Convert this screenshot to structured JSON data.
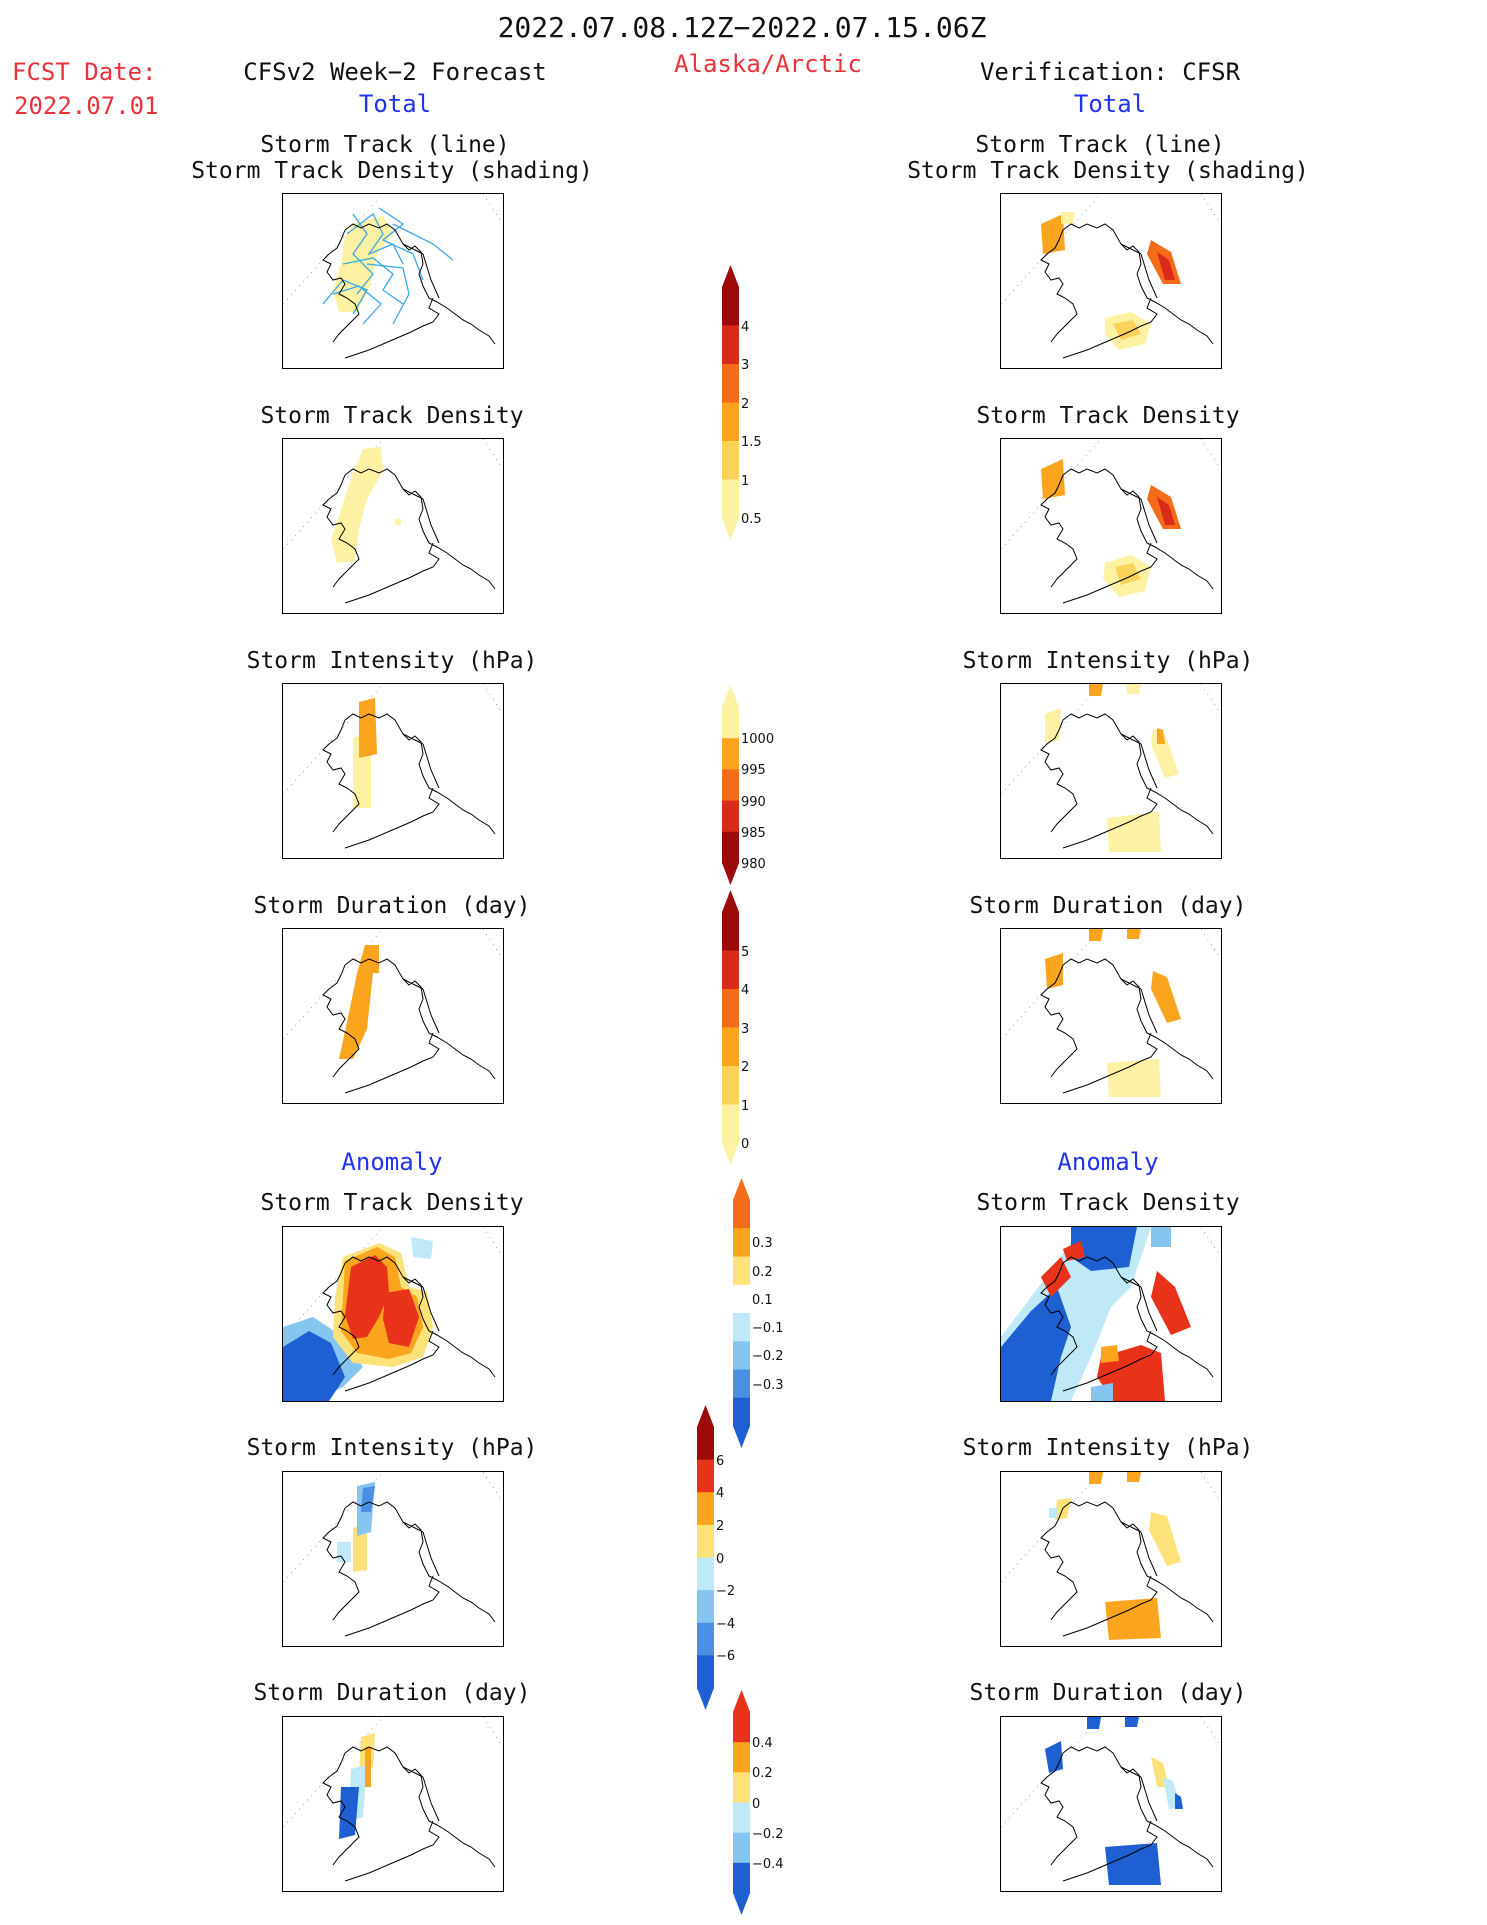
{
  "header": {
    "period": "2022.07.08.12Z−2022.07.15.06Z",
    "region": "Alaska/Arctic",
    "fcst_label": "FCST Date:",
    "fcst_date": "2022.07.01",
    "left_title": "CFSv2 Week−2 Forecast",
    "left_sub": "Total",
    "right_title": "Verification: CFSR",
    "right_sub": "Total"
  },
  "section_labels": {
    "anomaly_left": "Anomaly",
    "anomaly_right": "Anomaly"
  },
  "panels": {
    "track_line1": "Storm Track (line)",
    "track_line2": "Storm Track Density (shading)",
    "density": "Storm Track Density",
    "intensity": "Storm Intensity (hPa)",
    "duration": "Storm Duration (day)"
  },
  "colorbars": {
    "density_total": {
      "ticks": [
        "4",
        "3",
        "2",
        "1.5",
        "1",
        "0.5"
      ],
      "colors": [
        "#9c0a0a",
        "#d92a1a",
        "#f46b1a",
        "#fba41e",
        "#fcd25a",
        "#fdf1a4"
      ]
    },
    "intensity_total": {
      "ticks": [
        "1000",
        "995",
        "990",
        "985",
        "980"
      ],
      "colors": [
        "#fdf1a4",
        "#fba41e",
        "#f46b1a",
        "#d92a1a",
        "#9c0a0a"
      ]
    },
    "duration_total": {
      "ticks": [
        "5",
        "4",
        "3",
        "2",
        "1",
        "0"
      ],
      "colors": [
        "#9c0a0a",
        "#d92a1a",
        "#f46b1a",
        "#fba41e",
        "#fcd25a",
        "#fdf1a4"
      ]
    },
    "density_anom": {
      "ticks": [
        "0.3",
        "0.2",
        "0.1",
        "−0.1",
        "−0.2",
        "−0.3"
      ],
      "colors": [
        "#f46b1a",
        "#fba41e",
        "#fde27a",
        "#ffffff",
        "#bfe9f6",
        "#86c5ef",
        "#4a8fe2",
        "#1e5fd2"
      ]
    },
    "intensity_anom": {
      "ticks": [
        "6",
        "4",
        "2",
        "0",
        "−2",
        "−4",
        "−6"
      ],
      "colors": [
        "#9c0a0a",
        "#e8321a",
        "#fba41e",
        "#fde27a",
        "#bfe9f6",
        "#86c5ef",
        "#4a8fe2",
        "#1e5fd2"
      ]
    },
    "duration_anom": {
      "ticks": [
        "0.4",
        "0.2",
        "0",
        "−0.2",
        "−0.4"
      ],
      "colors": [
        "#e8321a",
        "#fba41e",
        "#fde27a",
        "#bfe9f6",
        "#86c5ef",
        "#1e5fd2"
      ]
    }
  },
  "palette": {
    "title_red": "#e8323a",
    "label_blue": "#2233ee",
    "track_line": "#3ba8e8"
  }
}
